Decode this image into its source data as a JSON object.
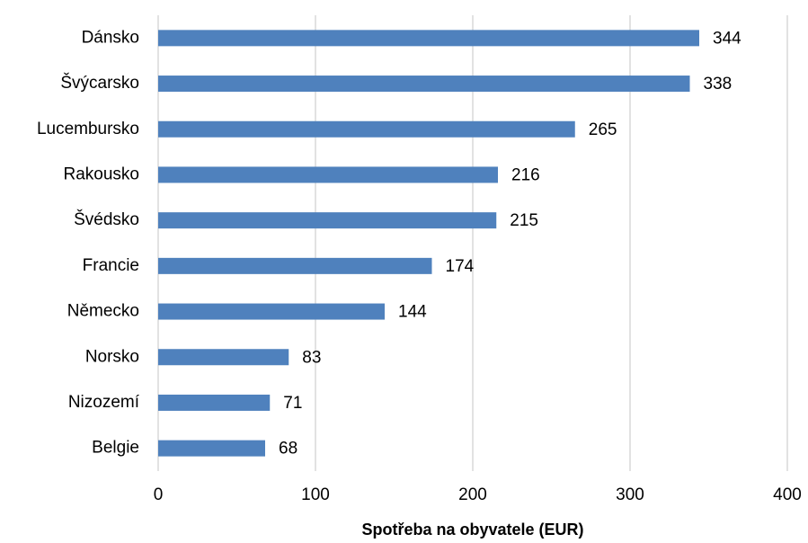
{
  "chart_data": {
    "type": "bar",
    "orientation": "horizontal",
    "x_label": "Spotřeba na obyvatele (EUR)",
    "categories": [
      "Dánsko",
      "Švýcarsko",
      "Lucembursko",
      "Rakousko",
      "Švédsko",
      "Francie",
      "Německo",
      "Norsko",
      "Nizozemí",
      "Belgie"
    ],
    "values": [
      344,
      338,
      265,
      216,
      215,
      174,
      144,
      83,
      71,
      68
    ],
    "color": "#4f81bd",
    "xlim": [
      0,
      400
    ],
    "xticks": [
      0,
      100,
      200,
      300,
      400
    ],
    "grid": true
  }
}
